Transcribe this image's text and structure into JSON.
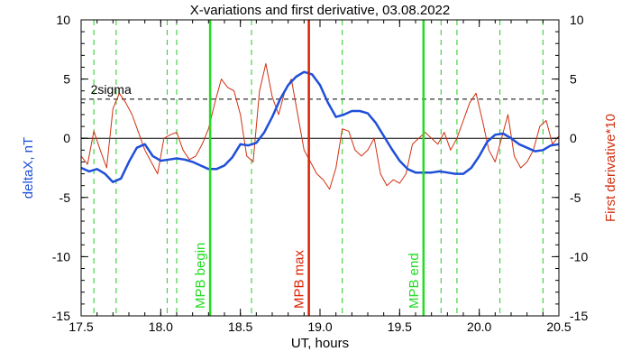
{
  "chart_data": {
    "type": "line",
    "title": "X-variations and first derivative, 03.08.2022",
    "xlabel": "UT, hours",
    "ylabel_left": "deltaX, nT",
    "ylabel_right": "First derivative*10",
    "xlim": [
      17.5,
      20.5
    ],
    "ylim_left": [
      -15,
      10
    ],
    "ylim_right": [
      -15,
      10
    ],
    "x_ticks": [
      "17.5",
      "18.0",
      "18.5",
      "19.0",
      "19.5",
      "20.0",
      "20.5"
    ],
    "y_ticks_left": [
      "10",
      "5",
      "0",
      "-5",
      "-10",
      "-15"
    ],
    "y_ticks_right": [
      "10",
      "5",
      "0",
      "-5",
      "-10",
      "-15"
    ],
    "colors": {
      "deltaX": "#1f4fd8",
      "derivative": "#d03010",
      "mpb_edges": "#22dd22",
      "mpb_max": "#dd2200",
      "dashed_green": "#22cc22"
    },
    "sigma_level": 3.3,
    "sigma_label": "2sigma",
    "vertical_markers": [
      {
        "x": 18.31,
        "label": "MPB begin",
        "color": "#22dd22"
      },
      {
        "x": 18.93,
        "label": "MPB max",
        "color": "#dd2200"
      },
      {
        "x": 19.65,
        "label": "MPB end",
        "color": "#22dd22"
      }
    ],
    "dashed_lines_x": [
      17.58,
      17.72,
      18.04,
      18.1,
      18.57,
      19.14,
      19.76,
      19.86,
      20.13,
      20.4
    ],
    "series": [
      {
        "key": "deltaX",
        "x": [
          17.5,
          17.55,
          17.6,
          17.65,
          17.7,
          17.75,
          17.8,
          17.85,
          17.9,
          17.95,
          18.0,
          18.05,
          18.1,
          18.15,
          18.2,
          18.25,
          18.3,
          18.35,
          18.4,
          18.45,
          18.5,
          18.55,
          18.6,
          18.65,
          18.7,
          18.75,
          18.8,
          18.85,
          18.9,
          18.95,
          19.0,
          19.05,
          19.1,
          19.15,
          19.2,
          19.25,
          19.3,
          19.35,
          19.4,
          19.45,
          19.5,
          19.55,
          19.6,
          19.65,
          19.7,
          19.75,
          19.8,
          19.85,
          19.9,
          19.95,
          20.0,
          20.05,
          20.1,
          20.15,
          20.2,
          20.25,
          20.3,
          20.35,
          20.4,
          20.45,
          20.5
        ],
        "values": [
          -2.5,
          -2.8,
          -2.6,
          -3.0,
          -3.7,
          -3.4,
          -2.0,
          -0.8,
          -0.5,
          -1.5,
          -1.9,
          -1.8,
          -1.7,
          -1.8,
          -2.0,
          -2.3,
          -2.6,
          -2.6,
          -2.3,
          -1.6,
          -0.5,
          -0.6,
          -0.4,
          0.5,
          1.8,
          3.3,
          4.5,
          5.2,
          5.6,
          5.4,
          4.5,
          3.0,
          1.8,
          2.0,
          2.3,
          2.3,
          2.1,
          1.3,
          0.2,
          -0.9,
          -1.9,
          -2.6,
          -2.9,
          -2.9,
          -2.9,
          -2.8,
          -2.9,
          -3.0,
          -3.0,
          -2.5,
          -1.5,
          -0.3,
          0.3,
          0.4,
          0.0,
          -0.5,
          -0.8,
          -1.1,
          -1.0,
          -0.6,
          -0.5
        ]
      },
      {
        "key": "derivative",
        "x": [
          17.5,
          17.54,
          17.58,
          17.62,
          17.66,
          17.7,
          17.74,
          17.78,
          17.82,
          17.86,
          17.9,
          17.94,
          17.98,
          18.02,
          18.06,
          18.1,
          18.14,
          18.18,
          18.22,
          18.26,
          18.3,
          18.34,
          18.38,
          18.42,
          18.46,
          18.5,
          18.54,
          18.58,
          18.62,
          18.66,
          18.7,
          18.74,
          18.78,
          18.82,
          18.86,
          18.9,
          18.94,
          18.98,
          19.02,
          19.06,
          19.1,
          19.14,
          19.18,
          19.22,
          19.26,
          19.3,
          19.34,
          19.38,
          19.42,
          19.46,
          19.5,
          19.54,
          19.58,
          19.62,
          19.66,
          19.7,
          19.74,
          19.78,
          19.82,
          19.86,
          19.9,
          19.94,
          19.98,
          20.02,
          20.06,
          20.1,
          20.14,
          20.18,
          20.22,
          20.26,
          20.3,
          20.34,
          20.38,
          20.42,
          20.46,
          20.5
        ],
        "values": [
          -1.5,
          -2.2,
          0.6,
          -1.0,
          -2.5,
          2.5,
          3.8,
          3.0,
          2.0,
          0.5,
          -1.0,
          -2.0,
          -3.0,
          0.0,
          0.3,
          0.5,
          -1.0,
          -1.8,
          -1.5,
          -0.5,
          0.8,
          3.0,
          5.0,
          4.3,
          4.0,
          2.0,
          -1.5,
          -2.0,
          4.0,
          6.3,
          3.5,
          2.0,
          4.0,
          5.0,
          2.0,
          -1.0,
          -2.0,
          -3.0,
          -3.5,
          -4.3,
          -2.5,
          0.8,
          0.6,
          -1.0,
          -1.5,
          -1.0,
          0.0,
          -3.0,
          -4.0,
          -3.5,
          -3.8,
          -3.0,
          -0.5,
          0.0,
          0.5,
          0.0,
          -0.5,
          0.5,
          -1.0,
          0.0,
          1.5,
          3.0,
          3.8,
          1.5,
          -1.0,
          -2.0,
          0.0,
          2.0,
          -1.5,
          -2.5,
          -2.0,
          -1.0,
          1.0,
          1.5,
          -0.5,
          0.2
        ]
      }
    ]
  }
}
